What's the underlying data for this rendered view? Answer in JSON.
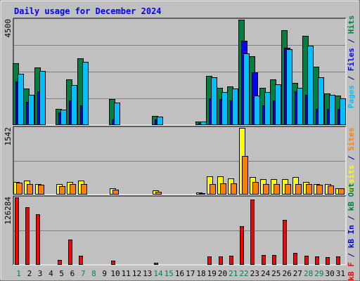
{
  "chart_data": {
    "type": "bar",
    "title": "Daily usage for December 2024",
    "days": [
      "1",
      "2",
      "3",
      "4",
      "5",
      "6",
      "7",
      "8",
      "9",
      "10",
      "11",
      "12",
      "13",
      "14",
      "15",
      "16",
      "17",
      "18",
      "19",
      "20",
      "21",
      "22",
      "23",
      "24",
      "25",
      "26",
      "27",
      "28",
      "29",
      "30",
      "31"
    ],
    "weekend_days": [
      "1",
      "7",
      "8",
      "14",
      "15",
      "21",
      "22",
      "28",
      "29"
    ],
    "panels": [
      {
        "name": "hits-files-pages",
        "ymax_label": "4500",
        "ymax": 4500,
        "side_label": [
          {
            "text": "Pages",
            "color": "#00c0ff"
          },
          {
            "text": " / ",
            "color": "#000080"
          },
          {
            "text": "Files",
            "color": "#0000ff"
          },
          {
            "text": " / ",
            "color": "#000080"
          },
          {
            "text": "Hits",
            "color": "#008040"
          }
        ],
        "series": [
          {
            "name": "Hits",
            "color": "#008040",
            "values": [
              2650,
              1550,
              2450,
              0,
              700,
              1950,
              2850,
              0,
              0,
              1100,
              0,
              0,
              0,
              400,
              0,
              0,
              0,
              150,
              2100,
              1600,
              1650,
              4500,
              2950,
              1600,
              1950,
              4050,
              1800,
              3800,
              2500,
              1350,
              1250
            ]
          },
          {
            "name": "Files",
            "color": "#0000ff",
            "values": [
              1850,
              1000,
              1450,
              0,
              550,
              1050,
              850,
              0,
              0,
              250,
              0,
              0,
              0,
              250,
              0,
              0,
              0,
              100,
              1150,
              1100,
              1050,
              3600,
              2250,
              850,
              1050,
              3300,
              1450,
              1300,
              700,
              700,
              700
            ]
          },
          {
            "name": "Pages",
            "color": "#00c0ff",
            "values": [
              2200,
              1300,
              2300,
              0,
              650,
              1700,
              2700,
              0,
              0,
              950,
              0,
              0,
              0,
              350,
              0,
              0,
              0,
              150,
              2050,
              1400,
              1550,
              3050,
              1250,
              1400,
              1750,
              3250,
              1600,
              3400,
              2050,
              1300,
              1150
            ]
          }
        ]
      },
      {
        "name": "visits-sites",
        "ymax_label": "1542",
        "ymax": 1542,
        "side_label": [
          {
            "text": "Visits",
            "color": "#ffff00"
          },
          {
            "text": " / ",
            "color": "#000080"
          },
          {
            "text": "Sites",
            "color": "#ff8000"
          }
        ],
        "series": [
          {
            "name": "Visits",
            "color": "#ffff00",
            "values": [
              290,
              320,
              250,
              0,
              240,
              290,
              330,
              0,
              0,
              150,
              0,
              0,
              0,
              100,
              0,
              0,
              0,
              50,
              420,
              420,
              380,
              1542,
              400,
              360,
              350,
              360,
              410,
              300,
              250,
              240,
              150
            ]
          },
          {
            "name": "Sites",
            "color": "#ff8000",
            "values": [
              270,
              250,
              230,
              0,
              200,
              250,
              250,
              0,
              0,
              110,
              0,
              0,
              0,
              70,
              0,
              0,
              0,
              40,
              250,
              260,
              260,
              900,
              290,
              240,
              250,
              250,
              250,
              250,
              230,
              210,
              140
            ]
          }
        ]
      },
      {
        "name": "kbytes",
        "ymax_label": "126284",
        "ymax": 126284,
        "side_label": [
          {
            "text": "kB F",
            "color": "#ff0000"
          },
          {
            "text": " / ",
            "color": "#000080"
          },
          {
            "text": "kB In",
            "color": "#0000ff"
          },
          {
            "text": " / ",
            "color": "#000080"
          },
          {
            "text": "kB Out",
            "color": "#008040"
          }
        ],
        "series": [
          {
            "name": "kB F",
            "color": "#ff0000",
            "values": [
              126284,
              108000,
              95000,
              0,
              9000,
              47000,
              17000,
              0,
              0,
              8000,
              0,
              0,
              0,
              4000,
              0,
              0,
              0,
              0,
              16000,
              16000,
              17000,
              73000,
              122000,
              19000,
              19000,
              84000,
              23000,
              17000,
              16000,
              14000,
              16000
            ]
          }
        ]
      }
    ]
  }
}
